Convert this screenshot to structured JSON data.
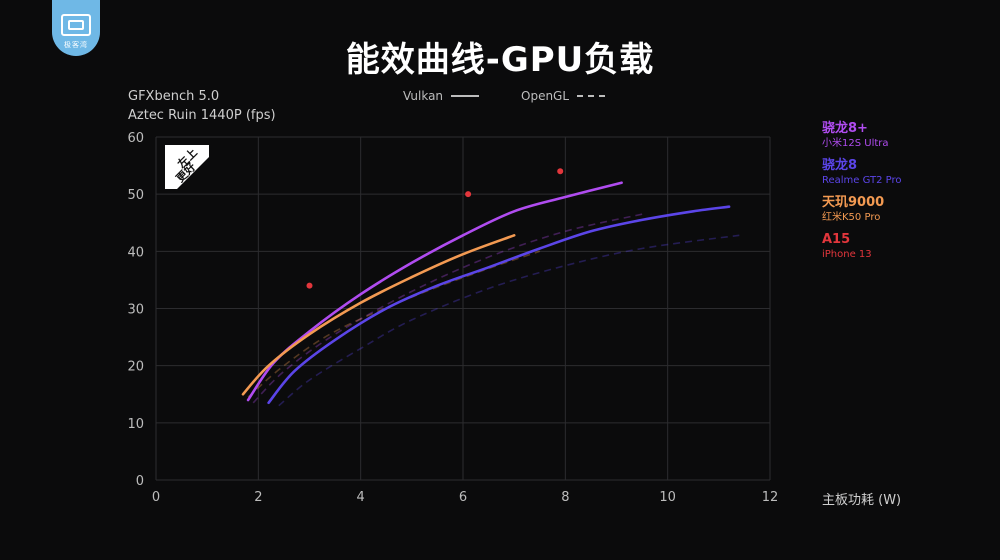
{
  "header": {
    "logo_text": "极客湾",
    "title": "能效曲线-GPU负载"
  },
  "benchmark": {
    "line1": "GFXbench 5.0",
    "line2": "Aztec Ruin 1440P (fps)"
  },
  "api_legend": [
    {
      "label": "Vulkan",
      "style": "solid"
    },
    {
      "label": "OpenGL",
      "style": "dashed"
    }
  ],
  "badge": {
    "line1": "左上",
    "line2": "更好"
  },
  "chart_data": {
    "type": "line",
    "title": "能效曲线-GPU负载",
    "xlabel": "主板功耗 (W)",
    "ylabel": "Aztec Ruin 1440P (fps)",
    "xlim": [
      0,
      12
    ],
    "ylim": [
      0,
      60
    ],
    "x_ticks": [
      0,
      2,
      4,
      6,
      8,
      10,
      12
    ],
    "y_ticks": [
      0,
      10,
      20,
      30,
      40,
      50,
      60
    ],
    "grid": true,
    "legend_position": "right",
    "series": [
      {
        "name": "骁龙8+",
        "device": "小米12S Ultra",
        "color": "#b04cf0",
        "vulkan": [
          [
            1.8,
            14
          ],
          [
            2.3,
            20.5
          ],
          [
            3,
            26
          ],
          [
            4,
            32.5
          ],
          [
            5,
            38
          ],
          [
            6,
            42.8
          ],
          [
            7,
            47
          ],
          [
            8,
            49.5
          ],
          [
            9.1,
            52
          ]
        ],
        "opengl": [
          [
            1.9,
            13.5
          ],
          [
            2.5,
            19
          ],
          [
            3.5,
            25.5
          ],
          [
            5,
            33
          ],
          [
            6.5,
            39
          ],
          [
            8,
            43.5
          ],
          [
            9.5,
            46.5
          ]
        ]
      },
      {
        "name": "骁龙8",
        "device": "Realme GT2 Pro",
        "color": "#5b45e8",
        "vulkan": [
          [
            2.2,
            13.5
          ],
          [
            2.7,
            19
          ],
          [
            3.5,
            24.5
          ],
          [
            4.5,
            30
          ],
          [
            5.5,
            34
          ],
          [
            6.5,
            37.2
          ],
          [
            7.5,
            40.5
          ],
          [
            8.5,
            43.5
          ],
          [
            9.5,
            45.5
          ],
          [
            10.5,
            47
          ],
          [
            11.2,
            47.8
          ]
        ],
        "opengl": [
          [
            2.4,
            13
          ],
          [
            3,
            17.5
          ],
          [
            4,
            23
          ],
          [
            5,
            28
          ],
          [
            6.5,
            33.5
          ],
          [
            8,
            37.5
          ],
          [
            9.5,
            40.5
          ],
          [
            11.4,
            42.8
          ]
        ]
      },
      {
        "name": "天玑9000",
        "device": "红米K50 Pro",
        "color": "#f39a52",
        "vulkan": [
          [
            1.7,
            15
          ],
          [
            2.2,
            20
          ],
          [
            3,
            25.5
          ],
          [
            4,
            31
          ],
          [
            5,
            35.5
          ],
          [
            6,
            39.5
          ],
          [
            7,
            42.8
          ]
        ],
        "opengl": [
          [
            1.8,
            14.5
          ],
          [
            2.5,
            20
          ],
          [
            3.5,
            26
          ],
          [
            5,
            32
          ],
          [
            6.5,
            37
          ],
          [
            7.5,
            40
          ]
        ]
      },
      {
        "name": "A15",
        "device": "iPhone 13",
        "color": "#e2363c",
        "points": [
          [
            3,
            34
          ],
          [
            6.1,
            50
          ],
          [
            7.9,
            54
          ]
        ]
      }
    ]
  }
}
